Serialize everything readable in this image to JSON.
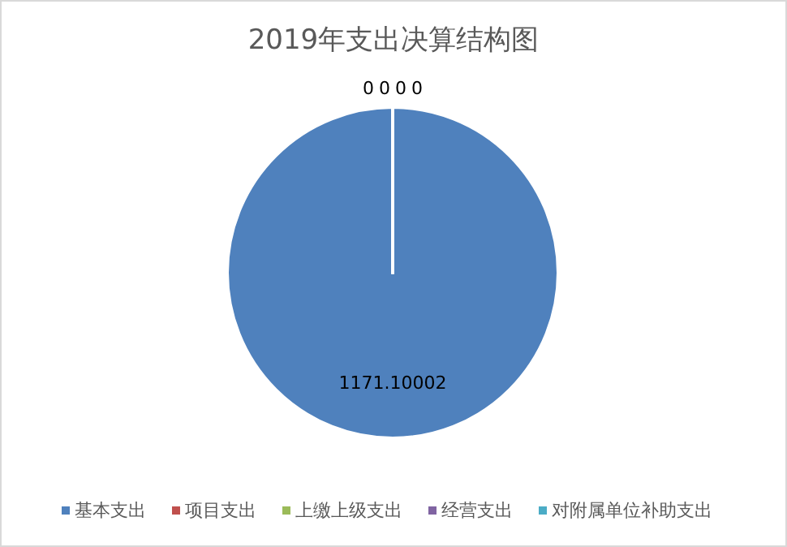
{
  "chart_data": {
    "type": "pie",
    "title": "2019年支出决算结构图",
    "categories": [
      "基本支出",
      "项目支出",
      "上缴上级支出",
      "经营支出",
      "对附属单位补助支出"
    ],
    "values": [
      1171.10002,
      0,
      0,
      0,
      0
    ],
    "colors": [
      "#4f81bd",
      "#c0504d",
      "#9bbb59",
      "#8064a2",
      "#4bacc6"
    ],
    "data_labels": true,
    "value_labels": [
      "1171.10002",
      "0",
      "0",
      "0",
      "0"
    ],
    "legend": "bottom"
  }
}
